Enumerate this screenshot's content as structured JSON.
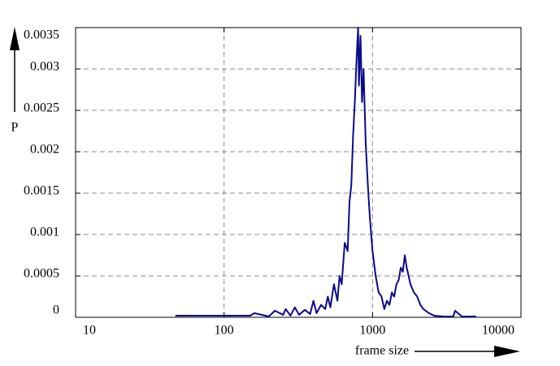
{
  "chart_data": {
    "type": "line",
    "x_label": "frame size",
    "y_label": "P",
    "log_x": true,
    "grid": true,
    "xlim": [
      10,
      10000
    ],
    "xticks": [
      10,
      100,
      1000,
      10000
    ],
    "ylim": [
      0,
      0.0035
    ],
    "yticks": [
      0,
      0.0005,
      0.001,
      0.0015,
      0.002,
      0.0025,
      0.003,
      0.0035
    ],
    "x": [
      47,
      100,
      150,
      160,
      200,
      220,
      250,
      260,
      280,
      300,
      320,
      350,
      380,
      400,
      420,
      450,
      480,
      500,
      520,
      550,
      580,
      600,
      620,
      650,
      680,
      700,
      720,
      740,
      760,
      780,
      800,
      810,
      830,
      850,
      870,
      900,
      930,
      960,
      1000,
      1050,
      1100,
      1150,
      1200,
      1250,
      1300,
      1350,
      1400,
      1450,
      1500,
      1550,
      1600,
      1650,
      1700,
      1750,
      1800,
      1900,
      2000,
      2100,
      2200,
      2400,
      2600,
      3000,
      3500,
      3600,
      4000,
      5000
    ],
    "series": [
      {
        "color": "#0a0a8c",
        "values": [
          2e-05,
          2e-05,
          2e-05,
          5e-05,
          1e-05,
          8e-05,
          3e-05,
          0.0001,
          2e-05,
          0.00012,
          3e-05,
          9e-05,
          4e-05,
          0.0002,
          5e-05,
          0.00015,
          0.0001,
          0.00025,
          0.00012,
          0.0004,
          0.0002,
          0.0005,
          0.0004,
          0.0009,
          0.0008,
          0.0014,
          0.0016,
          0.0022,
          0.0026,
          0.0031,
          0.0035,
          0.0028,
          0.0034,
          0.0026,
          0.003,
          0.0021,
          0.0016,
          0.0012,
          0.0008,
          0.0005,
          0.0003,
          0.00025,
          0.0001,
          0.0002,
          0.00015,
          0.0003,
          0.00025,
          0.0004,
          0.00045,
          0.0006,
          0.00055,
          0.00075,
          0.0006,
          0.0005,
          0.0004,
          0.0003,
          0.00025,
          0.00015,
          0.0001,
          5e-05,
          2e-05,
          1e-05,
          1e-05,
          8e-05,
          1e-05,
          1e-05
        ]
      }
    ]
  }
}
